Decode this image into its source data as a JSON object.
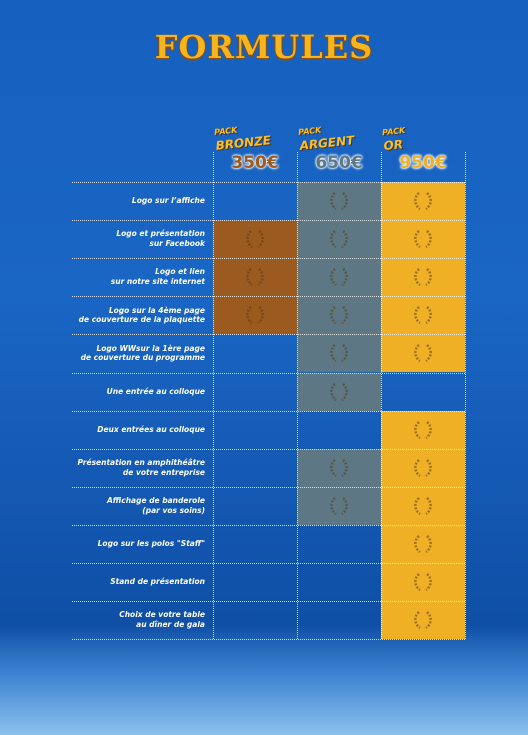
{
  "header": {
    "title": "FORMULES"
  },
  "packs": [
    {
      "prefix": "PACK",
      "name": "BRONZE",
      "price": "350€",
      "color": "#9b5a1f"
    },
    {
      "prefix": "PACK",
      "name": "ARGENT",
      "price": "650€",
      "color": "#5d7884"
    },
    {
      "prefix": "PACK",
      "name": "OR",
      "price": "950€",
      "color": "#efb026"
    }
  ],
  "rows": [
    {
      "lines": [
        "Logo sur l’affiche"
      ],
      "included": [
        false,
        true,
        true
      ]
    },
    {
      "lines": [
        "Logo et présentation",
        "sur Facebook"
      ],
      "included": [
        true,
        true,
        true
      ]
    },
    {
      "lines": [
        "Logo et lien",
        "sur notre site internet"
      ],
      "included": [
        true,
        true,
        true
      ]
    },
    {
      "lines": [
        "Logo sur la 4ème page",
        "de couverture de la plaquette"
      ],
      "included": [
        true,
        true,
        true
      ]
    },
    {
      "lines": [
        "Logo WWsur la 1ère page",
        "de couverture du programme"
      ],
      "included": [
        false,
        true,
        true
      ]
    },
    {
      "lines": [
        "Une entrée au colloque"
      ],
      "included": [
        false,
        true,
        false
      ]
    },
    {
      "lines": [
        "Deux entrées au colloque"
      ],
      "included": [
        false,
        false,
        true
      ]
    },
    {
      "lines": [
        "Présentation en amphithéâtre",
        "de votre entreprise"
      ],
      "included": [
        false,
        true,
        true
      ]
    },
    {
      "lines": [
        "Affichage de banderole",
        "(par vos soins)"
      ],
      "included": [
        false,
        true,
        true
      ]
    },
    {
      "lines": [
        "Logo sur les polos \"Staff\""
      ],
      "included": [
        false,
        false,
        true
      ]
    },
    {
      "lines": [
        "Stand de présentation"
      ],
      "included": [
        false,
        false,
        true
      ]
    },
    {
      "lines": [
        "Choix de votre table",
        "au dîner de gala"
      ],
      "included": [
        false,
        false,
        true
      ]
    }
  ]
}
